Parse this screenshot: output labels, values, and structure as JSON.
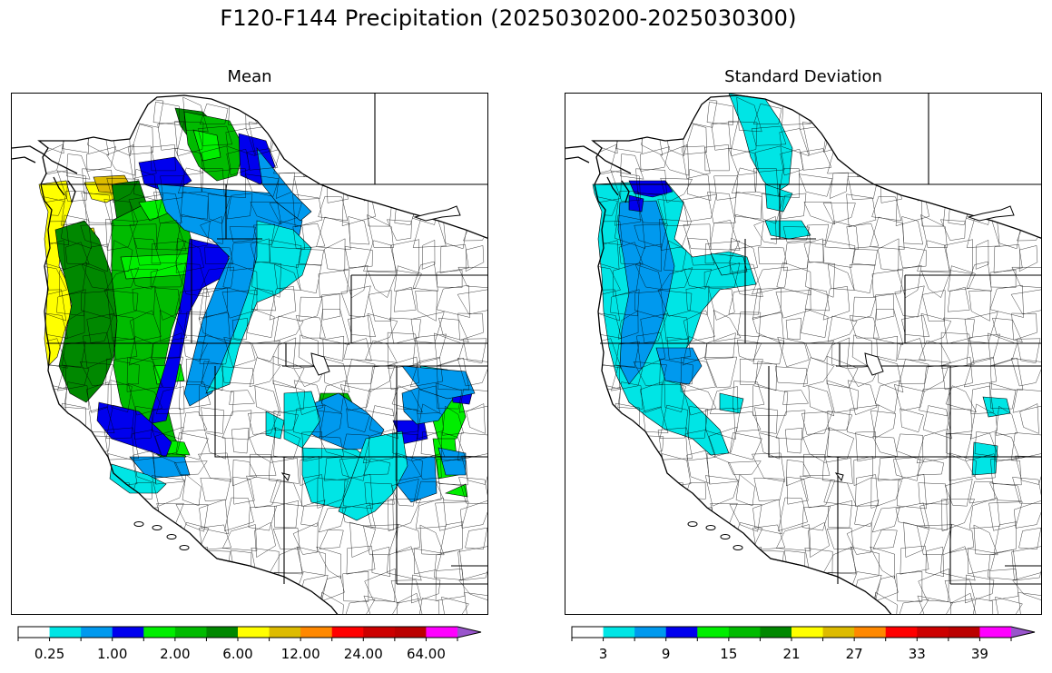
{
  "figure": {
    "title": "F120-F144 Precipitation (2025030200-2025030300)"
  },
  "colors": {
    "levels": [
      "#ffffff",
      "#00e5e5",
      "#0099ee",
      "#0000ee",
      "#00ee00",
      "#00bb00",
      "#008800",
      "#ffff00",
      "#ddbb00",
      "#ff8800",
      "#ff0000",
      "#cc0000",
      "#bb0000",
      "#ff00ff",
      "#9955cc"
    ],
    "basin_line": "#000000",
    "border_line": "#000000"
  },
  "panels": [
    {
      "id": "mean",
      "title": "Mean",
      "colorbar": {
        "tick_labels": [
          "0.25",
          "1.00",
          "2.00",
          "6.00",
          "12.00",
          "24.00",
          "64.00"
        ],
        "extend": "max"
      },
      "fill_regions": [
        {
          "name": "yellow-coast",
          "color_level": 7
        },
        {
          "name": "olive-puget",
          "color_level": 8
        },
        {
          "name": "dark-green-coast",
          "color_level": 6
        },
        {
          "name": "green-cascades",
          "color_level": 5
        },
        {
          "name": "bright-green-bands",
          "color_level": 4
        },
        {
          "name": "blue-sierra-cascade-crest",
          "color_level": 3
        },
        {
          "name": "mid-blue-interior",
          "color_level": 2
        },
        {
          "name": "cyan-interior",
          "color_level": 1
        },
        {
          "name": "colorado-rockies-mix",
          "color_level": 2
        }
      ]
    },
    {
      "id": "stddev",
      "title": "Standard Deviation",
      "colorbar": {
        "tick_labels": [
          "3",
          "9",
          "15",
          "21",
          "27",
          "33",
          "39"
        ],
        "extend": "max"
      },
      "fill_regions": [
        {
          "name": "cyan-coast",
          "color_level": 1
        },
        {
          "name": "blue-oregon",
          "color_level": 2
        },
        {
          "name": "dark-blue-puget",
          "color_level": 3
        },
        {
          "name": "cyan-idaho-panhandle",
          "color_level": 1
        },
        {
          "name": "cyan-colorado-spots",
          "color_level": 1
        }
      ]
    }
  ]
}
